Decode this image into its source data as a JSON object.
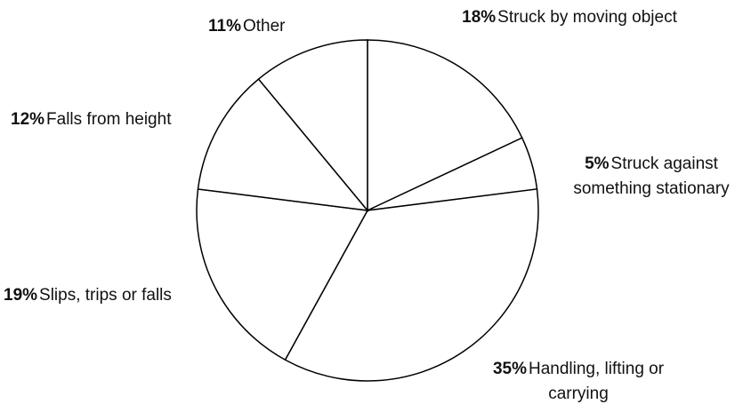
{
  "chart_data": {
    "type": "pie",
    "categories": [
      "Struck by moving object",
      "Struck against something stationary",
      "Handling, lifting or carrying",
      "Slips, trips or falls",
      "Falls from height",
      "Other"
    ],
    "values": [
      18,
      5,
      35,
      19,
      12,
      11
    ],
    "value_labels": [
      "18%",
      "5%",
      "35%",
      "19%",
      "12%",
      "11%"
    ],
    "color": "#ffffff",
    "edge_color": "#000000"
  }
}
